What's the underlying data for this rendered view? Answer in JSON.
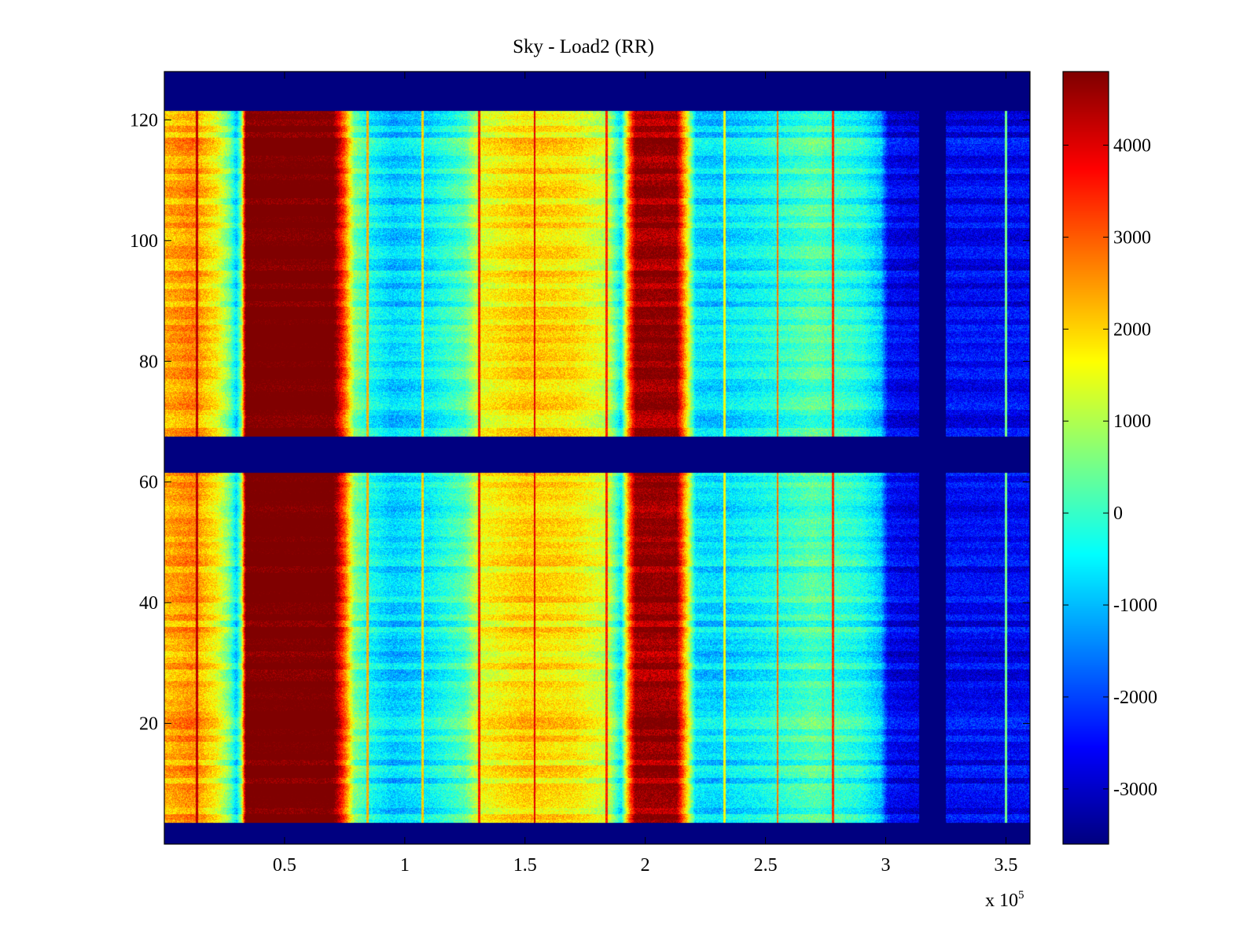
{
  "chart_data": [
    {
      "type": "heatmap",
      "title": "Sky - Load2 (RR)",
      "xlabel": "",
      "ylabel": "",
      "x_multiplier_label": "x 10",
      "x_multiplier_exponent": "5",
      "xlim": [
        0,
        360000
      ],
      "ylim": [
        0,
        128
      ],
      "x_ticks": [
        50000,
        100000,
        150000,
        200000,
        250000,
        300000,
        350000
      ],
      "x_tick_labels": [
        "0.5",
        "1",
        "1.5",
        "2",
        "2.5",
        "3",
        "3.5"
      ],
      "y_ticks": [
        20,
        40,
        60,
        80,
        100,
        120
      ],
      "y_tick_labels": [
        "20",
        "40",
        "60",
        "80",
        "100",
        "120"
      ],
      "colormap": "jet",
      "clim": [
        -3600,
        4800
      ],
      "masked_value": -3600,
      "masked_rows": [
        [
          0,
          3.5
        ],
        [
          61.5,
          67.5
        ],
        [
          121.5,
          128
        ]
      ],
      "masked_columns": [
        [
          314000,
          325000
        ]
      ],
      "column_profile": [
        {
          "x": 0,
          "value": 2200
        },
        {
          "x": 12000,
          "value": 2600
        },
        {
          "x": 22000,
          "value": 1600
        },
        {
          "x": 27000,
          "value": 500
        },
        {
          "x": 30000,
          "value": -800
        },
        {
          "x": 32000,
          "value": 600
        },
        {
          "x": 34000,
          "value": 5200
        },
        {
          "x": 70000,
          "value": 5200
        },
        {
          "x": 75000,
          "value": 3000
        },
        {
          "x": 79000,
          "value": 600
        },
        {
          "x": 85000,
          "value": -300
        },
        {
          "x": 95000,
          "value": -900
        },
        {
          "x": 110000,
          "value": -600
        },
        {
          "x": 125000,
          "value": 200
        },
        {
          "x": 132000,
          "value": 1500
        },
        {
          "x": 150000,
          "value": 2000
        },
        {
          "x": 170000,
          "value": 1800
        },
        {
          "x": 185000,
          "value": 1100
        },
        {
          "x": 190000,
          "value": -600
        },
        {
          "x": 193000,
          "value": 2500
        },
        {
          "x": 196000,
          "value": 4600
        },
        {
          "x": 213000,
          "value": 4600
        },
        {
          "x": 217000,
          "value": 2000
        },
        {
          "x": 221000,
          "value": -700
        },
        {
          "x": 230000,
          "value": -800
        },
        {
          "x": 250000,
          "value": -400
        },
        {
          "x": 270000,
          "value": 200
        },
        {
          "x": 290000,
          "value": -300
        },
        {
          "x": 298000,
          "value": -1000
        },
        {
          "x": 301000,
          "value": -2600
        },
        {
          "x": 314000,
          "value": -2800
        },
        {
          "x": 325000,
          "value": -2600
        },
        {
          "x": 360000,
          "value": -2600
        }
      ],
      "narrow_lines": [
        {
          "x": 13500,
          "value": 4300
        },
        {
          "x": 84500,
          "value": 2300
        },
        {
          "x": 107500,
          "value": 2000
        },
        {
          "x": 131000,
          "value": 3600
        },
        {
          "x": 154000,
          "value": 4000
        },
        {
          "x": 184000,
          "value": 3500
        },
        {
          "x": 233000,
          "value": 1600
        },
        {
          "x": 255000,
          "value": 2800
        },
        {
          "x": 278000,
          "value": 3400
        },
        {
          "x": 350000,
          "value": 500
        }
      ],
      "colorbar": {
        "ticks": [
          -3000,
          -2000,
          -1000,
          0,
          1000,
          2000,
          3000,
          4000
        ],
        "tick_labels": [
          "-3000",
          "-2000",
          "-1000",
          "0",
          "1000",
          "2000",
          "3000",
          "4000"
        ]
      }
    }
  ]
}
